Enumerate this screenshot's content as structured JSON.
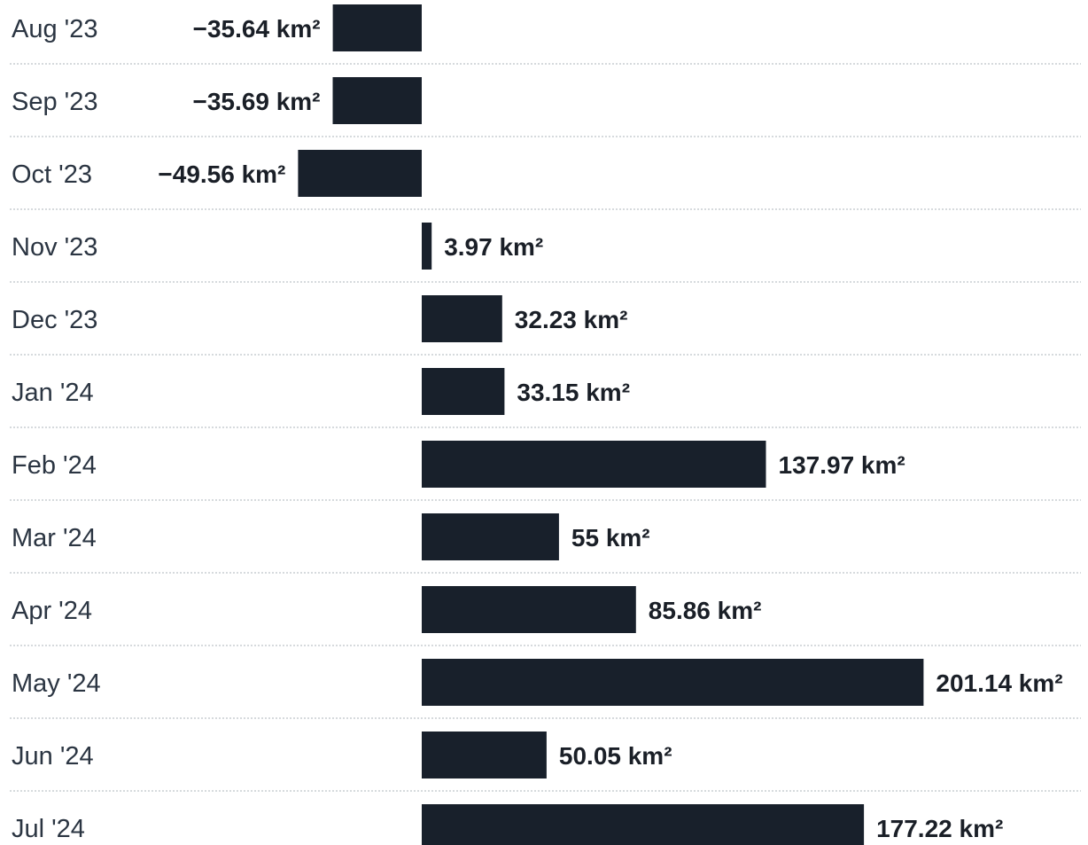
{
  "colors": {
    "bar": "#18202b",
    "label": "#2b3542",
    "value_text": "#1a1f27",
    "divider": "#c9cdd2"
  },
  "chart_data": {
    "type": "bar",
    "orientation": "horizontal",
    "unit": "km²",
    "categories": [
      "Aug '23",
      "Sep '23",
      "Oct '23",
      "Nov '23",
      "Dec '23",
      "Jan '24",
      "Feb '24",
      "Mar '24",
      "Apr '24",
      "May '24",
      "Jun '24",
      "Jul '24"
    ],
    "values": [
      -35.64,
      -35.69,
      -49.56,
      3.97,
      32.23,
      33.15,
      137.97,
      55,
      85.86,
      201.14,
      50.05,
      177.22
    ],
    "value_labels": [
      "−35.64 km²",
      "−35.69 km²",
      "−49.56 km²",
      "3.97 km²",
      "32.23 km²",
      "33.15 km²",
      "137.97 km²",
      "55 km²",
      "85.86 km²",
      "201.14 km²",
      "50.05 km²",
      "177.22 km²"
    ],
    "title": "",
    "xlabel": "",
    "ylabel": "",
    "grid": "dotted row dividers",
    "legend": "none"
  }
}
